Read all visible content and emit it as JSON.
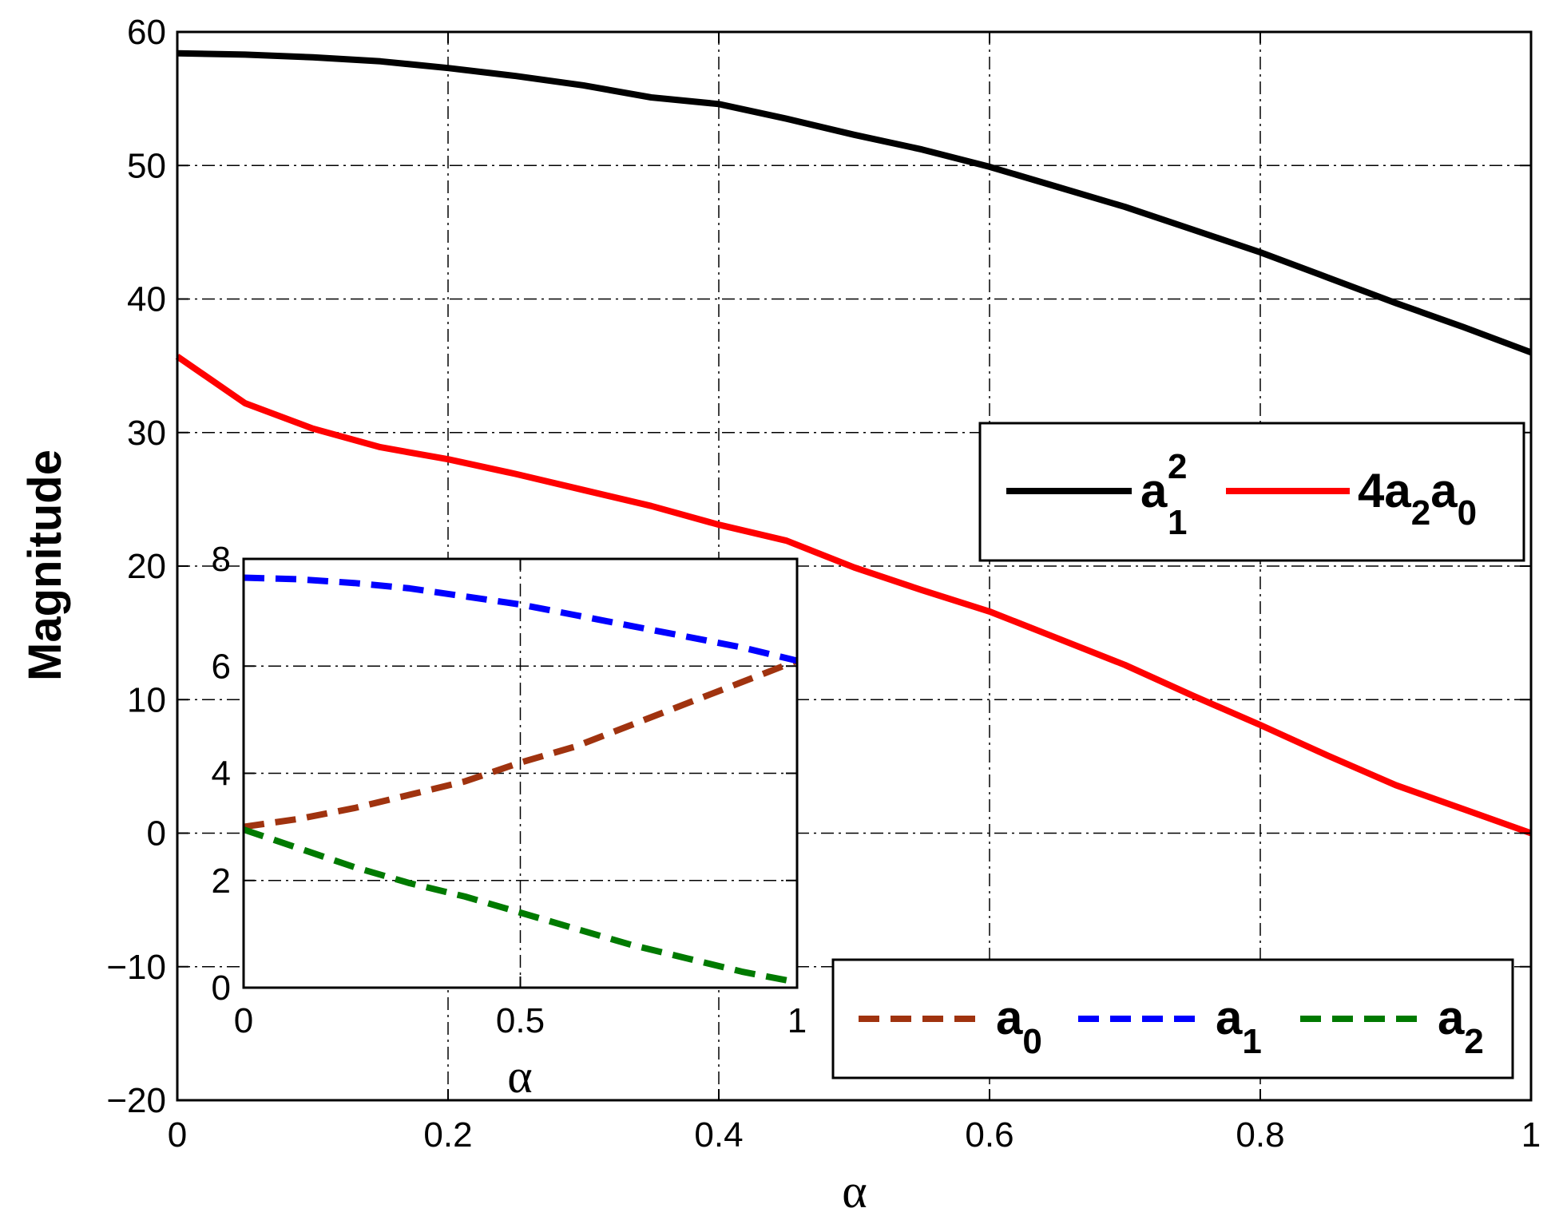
{
  "chart_data": [
    {
      "type": "line",
      "xlabel": "α",
      "ylabel": "Magnitude",
      "xlim": [
        0,
        1
      ],
      "ylim": [
        -20,
        60
      ],
      "xticks": [
        "0",
        "0.2",
        "0.4",
        "0.6",
        "0.8",
        "1"
      ],
      "yticks": [
        "−20",
        "−10",
        "0",
        "10",
        "20",
        "30",
        "40",
        "50",
        "60"
      ],
      "grid": true,
      "legend_position": "center-right",
      "x": [
        0,
        0.05,
        0.1,
        0.15,
        0.2,
        0.25,
        0.3,
        0.35,
        0.4,
        0.45,
        0.5,
        0.55,
        0.6,
        0.65,
        0.7,
        0.75,
        0.8,
        0.85,
        0.9,
        0.95,
        1
      ],
      "series": [
        {
          "name": "a",
          "sub": "1",
          "sup": "2",
          "color": "#000000",
          "style": "solid",
          "values": [
            58.4,
            58.3,
            58.1,
            57.8,
            57.3,
            56.7,
            56.0,
            55.1,
            54.6,
            53.5,
            52.3,
            51.2,
            49.9,
            48.4,
            46.9,
            45.2,
            43.5,
            41.6,
            39.7,
            37.9,
            36.0
          ]
        },
        {
          "name": "4a",
          "sub": "2",
          "name2": "a",
          "sub2": "0",
          "color": "#ff0000",
          "style": "solid",
          "values": [
            35.7,
            32.2,
            30.3,
            28.9,
            28.0,
            26.9,
            25.7,
            24.5,
            23.1,
            21.9,
            19.9,
            18.2,
            16.6,
            14.6,
            12.6,
            10.3,
            8.1,
            5.8,
            3.6,
            1.8,
            0.0
          ]
        }
      ]
    },
    {
      "type": "line",
      "xlabel": "α",
      "ylabel": "",
      "xlim": [
        0,
        1
      ],
      "ylim": [
        0,
        8
      ],
      "xticks": [
        "0",
        "0.5",
        "1"
      ],
      "yticks": [
        "0",
        "2",
        "4",
        "6",
        "8"
      ],
      "grid": true,
      "legend_position": "bottom-right",
      "x": [
        0,
        0.1,
        0.2,
        0.3,
        0.4,
        0.5,
        0.6,
        0.7,
        0.8,
        0.9,
        1
      ],
      "series": [
        {
          "name": "a",
          "sub": "0",
          "color": "#a0330f",
          "style": "dashed",
          "values": [
            3.0,
            3.15,
            3.35,
            3.6,
            3.85,
            4.2,
            4.5,
            4.9,
            5.3,
            5.7,
            6.1
          ]
        },
        {
          "name": "a",
          "sub": "1",
          "color": "#0000ff",
          "style": "dashed",
          "values": [
            7.65,
            7.62,
            7.55,
            7.45,
            7.3,
            7.15,
            6.95,
            6.75,
            6.55,
            6.35,
            6.1
          ]
        },
        {
          "name": "a",
          "sub": "2",
          "color": "#007a00",
          "style": "dashed",
          "values": [
            2.95,
            2.6,
            2.25,
            1.95,
            1.7,
            1.4,
            1.1,
            0.8,
            0.55,
            0.3,
            0.1
          ]
        }
      ]
    }
  ]
}
